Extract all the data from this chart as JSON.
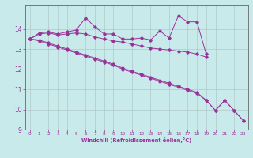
{
  "xlabel": "Windchill (Refroidissement éolien,°C)",
  "background_color": "#c8eaea",
  "grid_color": "#b0c8c8",
  "line_color": "#993399",
  "x_values": [
    0,
    1,
    2,
    3,
    4,
    5,
    6,
    7,
    8,
    9,
    10,
    11,
    12,
    13,
    14,
    15,
    16,
    17,
    18,
    19,
    20,
    21,
    22,
    23
  ],
  "series1": [
    13.5,
    13.8,
    13.85,
    13.75,
    13.85,
    13.95,
    14.55,
    14.1,
    13.75,
    13.75,
    13.5,
    13.5,
    13.55,
    13.45,
    13.9,
    13.55,
    14.65,
    14.35,
    14.35,
    12.75,
    null,
    null,
    null,
    null
  ],
  "series2": [
    13.5,
    13.75,
    13.8,
    13.7,
    13.75,
    13.8,
    13.75,
    13.6,
    13.5,
    13.4,
    13.35,
    13.25,
    13.15,
    13.05,
    13.0,
    12.95,
    12.9,
    12.85,
    12.75,
    12.6,
    null,
    null,
    null,
    null
  ],
  "series3": [
    13.5,
    13.45,
    13.3,
    13.15,
    13.0,
    12.85,
    12.7,
    12.55,
    12.4,
    12.25,
    12.05,
    11.9,
    11.75,
    11.6,
    11.45,
    11.3,
    11.15,
    11.0,
    10.85,
    10.45,
    9.95,
    10.45,
    9.95,
    9.45
  ],
  "series4": [
    13.5,
    13.4,
    13.25,
    13.1,
    12.95,
    12.8,
    12.65,
    12.5,
    12.35,
    12.2,
    12.0,
    11.85,
    11.7,
    11.55,
    11.4,
    11.25,
    11.1,
    10.95,
    10.8,
    10.45,
    9.95,
    10.45,
    9.95,
    9.45
  ],
  "ylim": [
    9,
    15
  ],
  "xlim": [
    -0.5,
    23.5
  ],
  "yticks": [
    9,
    10,
    11,
    12,
    13,
    14
  ],
  "xticks": [
    0,
    1,
    2,
    3,
    4,
    5,
    6,
    7,
    8,
    9,
    10,
    11,
    12,
    13,
    14,
    15,
    16,
    17,
    18,
    19,
    20,
    21,
    22,
    23
  ]
}
